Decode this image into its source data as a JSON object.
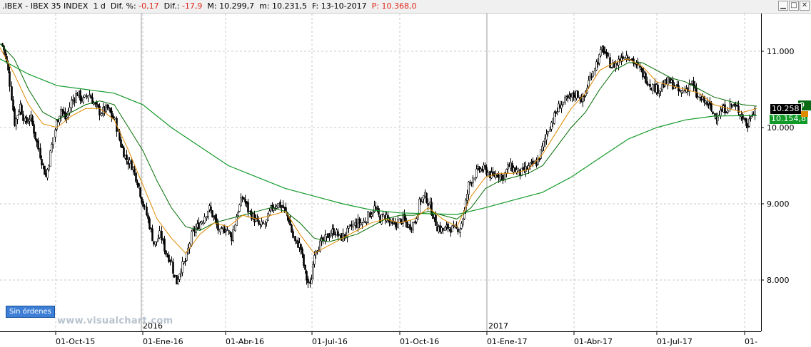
{
  "header": {
    "symbol": ".IBEX - IBEX 35 INDEX",
    "timeframe": "1 d",
    "dif_pct_label": "Dif. %:",
    "dif_pct_value": "-0,17",
    "dif_label": "Dif.:",
    "dif_value": "-17,9",
    "max_label": "M:",
    "max_value": "10.299,7",
    "min_label": "m:",
    "min_value": "10.231,5",
    "date_label": "F:",
    "date_value": "13-10-2017",
    "price_label": "P:",
    "price_value": "10.368,0"
  },
  "window_buttons": {
    "minimize": "▁",
    "maximize": "□",
    "close": "✕"
  },
  "sin_ordenes": "Sin órdenes",
  "watermark": "www.visualchart.com",
  "price_tags": {
    "last": "10.258",
    "mm_green_top": "9",
    "mm_green_bottom": "10.154,8"
  },
  "colors": {
    "candles": "#000000",
    "ma_fast": "#e08a00",
    "ma_mid": "#006a00",
    "ma_slow": "#129a29",
    "grid": "#c9c9c9",
    "down_text": "#e0261a"
  },
  "chart_data": {
    "type": "candlestick",
    "ylim": [
      7700,
      11350
    ],
    "y_ticks": [
      "11.000",
      "10.000",
      "9.000",
      "8.000"
    ],
    "y_tick_values": [
      11000,
      10000,
      9000,
      8000
    ],
    "x_ticks": [
      "01-Oct-15",
      "01-Ene-16",
      "01-Abr-16",
      "01-Jul-16",
      "01-Oct-16",
      "01-Ene-17",
      "01-Abr-17",
      "01-Jul-17",
      "01-"
    ],
    "year_labels": [
      "2016",
      "2017"
    ],
    "close_path": [
      [
        0,
        11150
      ],
      [
        6,
        11000
      ],
      [
        12,
        10700
      ],
      [
        20,
        10050
      ],
      [
        28,
        10300
      ],
      [
        35,
        10050
      ],
      [
        42,
        10150
      ],
      [
        50,
        9850
      ],
      [
        58,
        9550
      ],
      [
        64,
        9350
      ],
      [
        70,
        9650
      ],
      [
        78,
        10050
      ],
      [
        85,
        10250
      ],
      [
        92,
        10100
      ],
      [
        100,
        10350
      ],
      [
        108,
        10450
      ],
      [
        116,
        10350
      ],
      [
        124,
        10450
      ],
      [
        132,
        10300
      ],
      [
        140,
        10200
      ],
      [
        150,
        10250
      ],
      [
        160,
        10100
      ],
      [
        168,
        9800
      ],
      [
        176,
        9600
      ],
      [
        184,
        9500
      ],
      [
        192,
        9300
      ],
      [
        200,
        9000
      ],
      [
        208,
        8750
      ],
      [
        216,
        8450
      ],
      [
        224,
        8600
      ],
      [
        232,
        8350
      ],
      [
        240,
        8250
      ],
      [
        246,
        7950
      ],
      [
        252,
        8150
      ],
      [
        260,
        8250
      ],
      [
        268,
        8600
      ],
      [
        276,
        8700
      ],
      [
        284,
        8800
      ],
      [
        292,
        8950
      ],
      [
        300,
        8800
      ],
      [
        308,
        8600
      ],
      [
        316,
        8700
      ],
      [
        324,
        8550
      ],
      [
        332,
        8900
      ],
      [
        340,
        9100
      ],
      [
        348,
        8900
      ],
      [
        356,
        8800
      ],
      [
        364,
        8700
      ],
      [
        372,
        8750
      ],
      [
        380,
        8950
      ],
      [
        388,
        9000
      ],
      [
        396,
        8950
      ],
      [
        404,
        8800
      ],
      [
        412,
        8500
      ],
      [
        420,
        8450
      ],
      [
        428,
        8050
      ],
      [
        434,
        7900
      ],
      [
        440,
        8400
      ],
      [
        446,
        8450
      ],
      [
        452,
        8500
      ],
      [
        460,
        8600
      ],
      [
        468,
        8650
      ],
      [
        476,
        8550
      ],
      [
        484,
        8600
      ],
      [
        492,
        8700
      ],
      [
        500,
        8750
      ],
      [
        508,
        8750
      ],
      [
        516,
        8850
      ],
      [
        524,
        8950
      ],
      [
        532,
        8800
      ],
      [
        540,
        8850
      ],
      [
        548,
        8700
      ],
      [
        556,
        8750
      ],
      [
        564,
        8800
      ],
      [
        572,
        8700
      ],
      [
        580,
        8750
      ],
      [
        588,
        9050
      ],
      [
        596,
        9100
      ],
      [
        604,
        8900
      ],
      [
        612,
        8700
      ],
      [
        620,
        8650
      ],
      [
        628,
        8700
      ],
      [
        636,
        8650
      ],
      [
        644,
        8700
      ],
      [
        650,
        8900
      ],
      [
        656,
        9250
      ],
      [
        662,
        9350
      ],
      [
        670,
        9450
      ],
      [
        680,
        9450
      ],
      [
        688,
        9350
      ],
      [
        696,
        9400
      ],
      [
        704,
        9350
      ],
      [
        712,
        9500
      ],
      [
        720,
        9450
      ],
      [
        728,
        9400
      ],
      [
        736,
        9450
      ],
      [
        744,
        9500
      ],
      [
        752,
        9550
      ],
      [
        760,
        9750
      ],
      [
        768,
        10000
      ],
      [
        776,
        10150
      ],
      [
        784,
        10300
      ],
      [
        792,
        10350
      ],
      [
        800,
        10400
      ],
      [
        808,
        10450
      ],
      [
        816,
        10350
      ],
      [
        824,
        10600
      ],
      [
        832,
        10800
      ],
      [
        838,
        10900
      ],
      [
        844,
        11050
      ],
      [
        850,
        10900
      ],
      [
        856,
        10800
      ],
      [
        864,
        10850
      ],
      [
        872,
        10950
      ],
      [
        880,
        10950
      ],
      [
        888,
        10850
      ],
      [
        896,
        10750
      ],
      [
        904,
        10650
      ],
      [
        912,
        10550
      ],
      [
        920,
        10500
      ],
      [
        928,
        10550
      ],
      [
        936,
        10600
      ],
      [
        944,
        10550
      ],
      [
        952,
        10450
      ],
      [
        960,
        10500
      ],
      [
        968,
        10600
      ],
      [
        976,
        10400
      ],
      [
        984,
        10350
      ],
      [
        992,
        10300
      ],
      [
        1000,
        10150
      ],
      [
        1008,
        10200
      ],
      [
        1016,
        10250
      ],
      [
        1024,
        10300
      ],
      [
        1032,
        10250
      ],
      [
        1040,
        10150
      ],
      [
        1046,
        10000
      ],
      [
        1052,
        10200
      ],
      [
        1058,
        10258
      ]
    ],
    "ma_fast": [
      [
        0,
        11050
      ],
      [
        20,
        10700
      ],
      [
        40,
        10300
      ],
      [
        60,
        10050
      ],
      [
        80,
        10000
      ],
      [
        100,
        10150
      ],
      [
        120,
        10250
      ],
      [
        140,
        10250
      ],
      [
        160,
        10100
      ],
      [
        180,
        9700
      ],
      [
        200,
        9250
      ],
      [
        220,
        8800
      ],
      [
        240,
        8550
      ],
      [
        260,
        8350
      ],
      [
        280,
        8600
      ],
      [
        300,
        8750
      ],
      [
        320,
        8700
      ],
      [
        340,
        8850
      ],
      [
        360,
        8800
      ],
      [
        380,
        8850
      ],
      [
        400,
        8900
      ],
      [
        420,
        8600
      ],
      [
        440,
        8350
      ],
      [
        460,
        8450
      ],
      [
        480,
        8550
      ],
      [
        500,
        8650
      ],
      [
        520,
        8750
      ],
      [
        540,
        8800
      ],
      [
        560,
        8750
      ],
      [
        580,
        8800
      ],
      [
        600,
        8950
      ],
      [
        620,
        8800
      ],
      [
        640,
        8700
      ],
      [
        660,
        9100
      ],
      [
        680,
        9350
      ],
      [
        700,
        9400
      ],
      [
        720,
        9400
      ],
      [
        740,
        9450
      ],
      [
        760,
        9650
      ],
      [
        780,
        9950
      ],
      [
        800,
        10250
      ],
      [
        820,
        10450
      ],
      [
        840,
        10750
      ],
      [
        860,
        10850
      ],
      [
        880,
        10900
      ],
      [
        900,
        10800
      ],
      [
        920,
        10600
      ],
      [
        940,
        10550
      ],
      [
        960,
        10500
      ],
      [
        980,
        10450
      ],
      [
        1000,
        10300
      ],
      [
        1020,
        10250
      ],
      [
        1040,
        10200
      ],
      [
        1060,
        10250
      ]
    ],
    "ma_mid": [
      [
        0,
        11100
      ],
      [
        20,
        10900
      ],
      [
        40,
        10500
      ],
      [
        60,
        10200
      ],
      [
        80,
        10100
      ],
      [
        100,
        10200
      ],
      [
        120,
        10300
      ],
      [
        140,
        10350
      ],
      [
        160,
        10300
      ],
      [
        180,
        10000
      ],
      [
        200,
        9700
      ],
      [
        220,
        9300
      ],
      [
        240,
        8950
      ],
      [
        260,
        8700
      ],
      [
        280,
        8650
      ],
      [
        300,
        8750
      ],
      [
        320,
        8800
      ],
      [
        340,
        8850
      ],
      [
        360,
        8900
      ],
      [
        380,
        8950
      ],
      [
        400,
        8900
      ],
      [
        420,
        8750
      ],
      [
        440,
        8550
      ],
      [
        460,
        8500
      ],
      [
        480,
        8550
      ],
      [
        500,
        8600
      ],
      [
        520,
        8700
      ],
      [
        540,
        8800
      ],
      [
        560,
        8850
      ],
      [
        580,
        8850
      ],
      [
        600,
        8900
      ],
      [
        620,
        8850
      ],
      [
        640,
        8800
      ],
      [
        660,
        8950
      ],
      [
        680,
        9200
      ],
      [
        700,
        9300
      ],
      [
        720,
        9350
      ],
      [
        740,
        9400
      ],
      [
        760,
        9500
      ],
      [
        780,
        9750
      ],
      [
        800,
        10000
      ],
      [
        820,
        10200
      ],
      [
        840,
        10500
      ],
      [
        860,
        10750
      ],
      [
        880,
        10850
      ],
      [
        900,
        10850
      ],
      [
        920,
        10750
      ],
      [
        940,
        10650
      ],
      [
        960,
        10600
      ],
      [
        980,
        10500
      ],
      [
        1000,
        10400
      ],
      [
        1020,
        10350
      ],
      [
        1040,
        10300
      ],
      [
        1060,
        10280
      ]
    ],
    "ma_slow": [
      [
        0,
        10900
      ],
      [
        40,
        10700
      ],
      [
        80,
        10550
      ],
      [
        120,
        10500
      ],
      [
        160,
        10450
      ],
      [
        200,
        10300
      ],
      [
        240,
        10000
      ],
      [
        280,
        9750
      ],
      [
        320,
        9500
      ],
      [
        360,
        9350
      ],
      [
        400,
        9200
      ],
      [
        440,
        9100
      ],
      [
        480,
        9000
      ],
      [
        520,
        8920
      ],
      [
        560,
        8880
      ],
      [
        600,
        8870
      ],
      [
        640,
        8860
      ],
      [
        680,
        8950
      ],
      [
        720,
        9050
      ],
      [
        760,
        9150
      ],
      [
        800,
        9350
      ],
      [
        840,
        9600
      ],
      [
        880,
        9850
      ],
      [
        920,
        10000
      ],
      [
        960,
        10100
      ],
      [
        1000,
        10150
      ],
      [
        1040,
        10155
      ],
      [
        1060,
        10155
      ]
    ]
  }
}
